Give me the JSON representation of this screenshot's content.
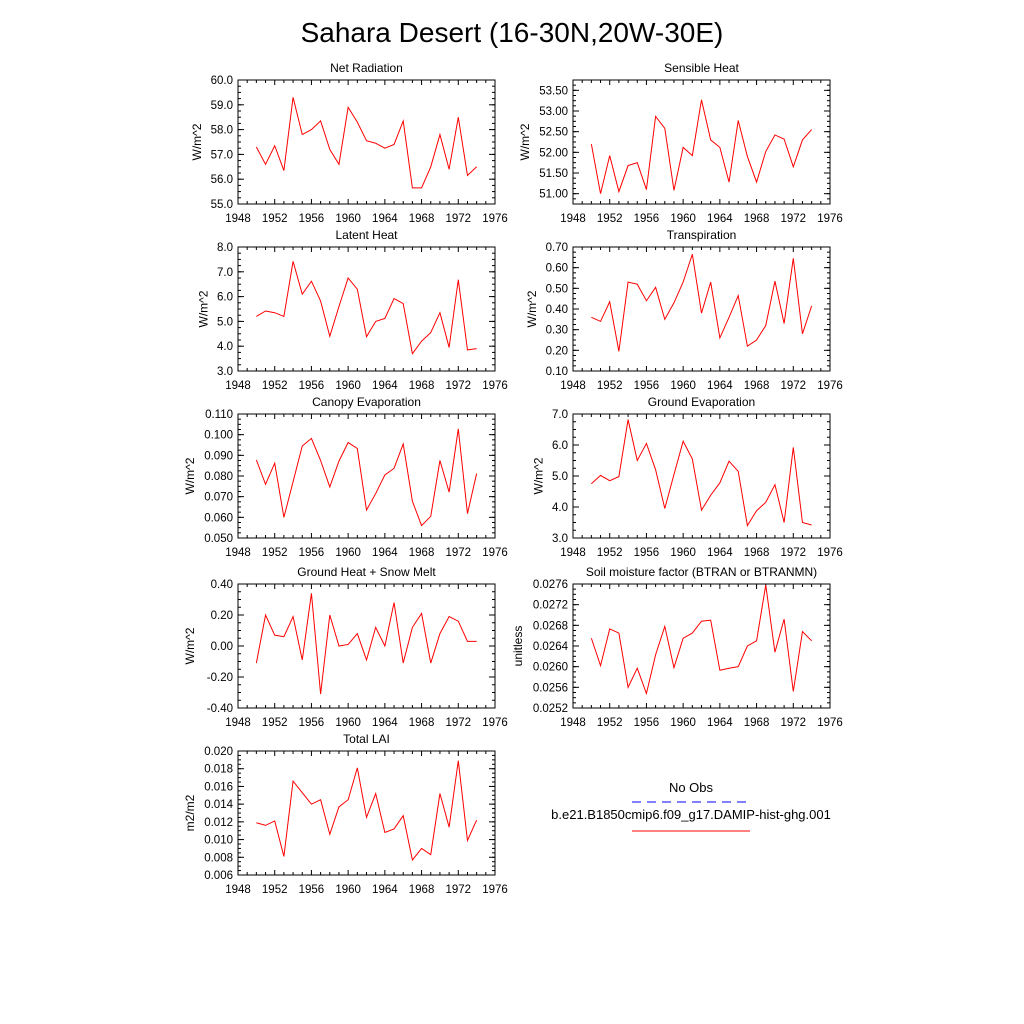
{
  "figure": {
    "title": "Sahara Desert (16-30N,20W-30E)"
  },
  "colors": {
    "model_line": "#ff0000",
    "obs_line": "#0000ff"
  },
  "legend": {
    "obs_label": "No Obs",
    "model_label": "b.e21.B1850cmip6.f09_g17.DAMIP-hist-ghg.001"
  },
  "chart_data": [
    {
      "type": "line",
      "title": "Net Radiation",
      "xlabel": "",
      "ylabel": "W/m^2",
      "xlim": [
        1948,
        1976
      ],
      "ylim": [
        55.0,
        60.0
      ],
      "xticks": [
        1948,
        1952,
        1956,
        1960,
        1964,
        1968,
        1972,
        1976
      ],
      "yticks": [
        55.0,
        56.0,
        57.0,
        58.0,
        59.0,
        60.0
      ],
      "ytick_labels": [
        "55.0",
        "56.0",
        "57.0",
        "58.0",
        "59.0",
        "60.0"
      ],
      "x": [
        1950,
        1951,
        1952,
        1953,
        1954,
        1955,
        1956,
        1957,
        1958,
        1959,
        1960,
        1961,
        1962,
        1963,
        1964,
        1965,
        1966,
        1967,
        1968,
        1969,
        1970,
        1971,
        1972,
        1973,
        1974
      ],
      "series": [
        {
          "values": [
            57.3,
            56.6,
            57.35,
            56.35,
            59.3,
            57.8,
            58.0,
            58.35,
            57.2,
            56.6,
            58.9,
            58.3,
            57.55,
            57.45,
            57.25,
            57.4,
            58.35,
            55.65,
            55.65,
            56.5,
            57.8,
            56.4,
            58.5,
            56.15,
            56.5
          ]
        }
      ]
    },
    {
      "type": "line",
      "title": "Sensible Heat",
      "xlabel": "",
      "ylabel": "W/m^2",
      "xlim": [
        1948,
        1976
      ],
      "ylim": [
        50.75,
        53.75
      ],
      "xticks": [
        1948,
        1952,
        1956,
        1960,
        1964,
        1968,
        1972,
        1976
      ],
      "yticks": [
        51.0,
        51.5,
        52.0,
        52.5,
        53.0,
        53.5
      ],
      "ytick_labels": [
        "51.00",
        "51.50",
        "52.00",
        "52.50",
        "53.00",
        "53.50"
      ],
      "x": [
        1950,
        1951,
        1952,
        1953,
        1954,
        1955,
        1956,
        1957,
        1958,
        1959,
        1960,
        1961,
        1962,
        1963,
        1964,
        1965,
        1966,
        1967,
        1968,
        1969,
        1970,
        1971,
        1972,
        1973,
        1974
      ],
      "series": [
        {
          "values": [
            52.2,
            51.0,
            51.92,
            51.05,
            51.68,
            51.75,
            51.1,
            52.87,
            52.58,
            51.08,
            52.12,
            51.92,
            53.27,
            52.3,
            52.12,
            51.28,
            52.77,
            51.9,
            51.28,
            52.02,
            52.42,
            52.32,
            51.65,
            52.3,
            52.55
          ]
        }
      ]
    },
    {
      "type": "line",
      "title": "Latent Heat",
      "xlabel": "",
      "ylabel": "W/m^2",
      "xlim": [
        1948,
        1976
      ],
      "ylim": [
        3.0,
        8.0
      ],
      "xticks": [
        1948,
        1952,
        1956,
        1960,
        1964,
        1968,
        1972,
        1976
      ],
      "yticks": [
        3.0,
        4.0,
        5.0,
        6.0,
        7.0,
        8.0
      ],
      "ytick_labels": [
        "3.0",
        "4.0",
        "5.0",
        "6.0",
        "7.0",
        "8.0"
      ],
      "x": [
        1950,
        1951,
        1952,
        1953,
        1954,
        1955,
        1956,
        1957,
        1958,
        1959,
        1960,
        1961,
        1962,
        1963,
        1964,
        1965,
        1966,
        1967,
        1968,
        1969,
        1970,
        1971,
        1972,
        1973,
        1974
      ],
      "series": [
        {
          "values": [
            5.2,
            5.42,
            5.35,
            5.2,
            7.42,
            6.1,
            6.62,
            5.82,
            4.4,
            5.6,
            6.75,
            6.3,
            4.38,
            5.0,
            5.12,
            5.92,
            5.72,
            3.7,
            4.2,
            4.55,
            5.35,
            3.95,
            6.68,
            3.85,
            3.9
          ]
        }
      ]
    },
    {
      "type": "line",
      "title": "Transpiration",
      "xlabel": "",
      "ylabel": "W/m^2",
      "xlim": [
        1948,
        1976
      ],
      "ylim": [
        0.1,
        0.7
      ],
      "xticks": [
        1948,
        1952,
        1956,
        1960,
        1964,
        1968,
        1972,
        1976
      ],
      "yticks": [
        0.1,
        0.2,
        0.3,
        0.4,
        0.5,
        0.6,
        0.7
      ],
      "ytick_labels": [
        "0.10",
        "0.20",
        "0.30",
        "0.40",
        "0.50",
        "0.60",
        "0.70"
      ],
      "x": [
        1950,
        1951,
        1952,
        1953,
        1954,
        1955,
        1956,
        1957,
        1958,
        1959,
        1960,
        1961,
        1962,
        1963,
        1964,
        1965,
        1966,
        1967,
        1968,
        1969,
        1970,
        1971,
        1972,
        1973,
        1974
      ],
      "series": [
        {
          "values": [
            0.36,
            0.34,
            0.435,
            0.195,
            0.53,
            0.52,
            0.44,
            0.505,
            0.35,
            0.43,
            0.53,
            0.665,
            0.38,
            0.53,
            0.26,
            0.36,
            0.465,
            0.22,
            0.25,
            0.32,
            0.535,
            0.33,
            0.645,
            0.28,
            0.415
          ]
        }
      ]
    },
    {
      "type": "line",
      "title": "Canopy Evaporation",
      "xlabel": "",
      "ylabel": "W/m^2",
      "xlim": [
        1948,
        1976
      ],
      "ylim": [
        0.05,
        0.11
      ],
      "xticks": [
        1948,
        1952,
        1956,
        1960,
        1964,
        1968,
        1972,
        1976
      ],
      "yticks": [
        0.05,
        0.06,
        0.07,
        0.08,
        0.09,
        0.1,
        0.11
      ],
      "ytick_labels": [
        "0.050",
        "0.060",
        "0.070",
        "0.080",
        "0.090",
        "0.100",
        "0.110"
      ],
      "x": [
        1950,
        1951,
        1952,
        1953,
        1954,
        1955,
        1956,
        1957,
        1958,
        1959,
        1960,
        1961,
        1962,
        1963,
        1964,
        1965,
        1966,
        1967,
        1968,
        1969,
        1970,
        1971,
        1972,
        1973,
        1974
      ],
      "series": [
        {
          "values": [
            0.0878,
            0.076,
            0.0862,
            0.06,
            0.0772,
            0.0945,
            0.0982,
            0.0875,
            0.0747,
            0.0872,
            0.0962,
            0.0933,
            0.0635,
            0.0715,
            0.0805,
            0.0837,
            0.0955,
            0.0678,
            0.056,
            0.0605,
            0.0875,
            0.0722,
            0.1028,
            0.0618,
            0.0812
          ]
        }
      ]
    },
    {
      "type": "line",
      "title": "Ground Evaporation",
      "xlabel": "",
      "ylabel": "W/m^2",
      "xlim": [
        1948,
        1976
      ],
      "ylim": [
        3.0,
        7.0
      ],
      "xticks": [
        1948,
        1952,
        1956,
        1960,
        1964,
        1968,
        1972,
        1976
      ],
      "yticks": [
        3.0,
        4.0,
        5.0,
        6.0,
        7.0
      ],
      "ytick_labels": [
        "3.0",
        "4.0",
        "5.0",
        "6.0",
        "7.0"
      ],
      "x": [
        1950,
        1951,
        1952,
        1953,
        1954,
        1955,
        1956,
        1957,
        1958,
        1959,
        1960,
        1961,
        1962,
        1963,
        1964,
        1965,
        1966,
        1967,
        1968,
        1969,
        1970,
        1971,
        1972,
        1973,
        1974
      ],
      "series": [
        {
          "values": [
            4.75,
            5.02,
            4.85,
            4.98,
            6.82,
            5.5,
            6.05,
            5.2,
            3.95,
            5.05,
            6.12,
            5.55,
            3.9,
            4.38,
            4.78,
            5.48,
            5.15,
            3.4,
            3.88,
            4.15,
            4.72,
            3.5,
            5.92,
            3.5,
            3.42
          ]
        }
      ]
    },
    {
      "type": "line",
      "title": "Ground Heat + Snow Melt",
      "xlabel": "",
      "ylabel": "W/m^2",
      "xlim": [
        1948,
        1976
      ],
      "ylim": [
        -0.4,
        0.4
      ],
      "xticks": [
        1948,
        1952,
        1956,
        1960,
        1964,
        1968,
        1972,
        1976
      ],
      "yticks": [
        -0.4,
        -0.2,
        0.0,
        0.2,
        0.4
      ],
      "ytick_labels": [
        "-0.40",
        "-0.20",
        "0.00",
        "0.20",
        "0.40"
      ],
      "x": [
        1950,
        1951,
        1952,
        1953,
        1954,
        1955,
        1956,
        1957,
        1958,
        1959,
        1960,
        1961,
        1962,
        1963,
        1964,
        1965,
        1966,
        1967,
        1968,
        1969,
        1970,
        1971,
        1972,
        1973,
        1974
      ],
      "series": [
        {
          "values": [
            -0.11,
            0.2,
            0.07,
            0.06,
            0.19,
            -0.09,
            0.34,
            -0.31,
            0.2,
            0.0,
            0.01,
            0.08,
            -0.09,
            0.12,
            0.0,
            0.28,
            -0.11,
            0.12,
            0.21,
            -0.11,
            0.08,
            0.19,
            0.16,
            0.03,
            0.03
          ]
        }
      ]
    },
    {
      "type": "line",
      "title": "Soil moisture factor (BTRAN or BTRANMN)",
      "xlabel": "",
      "ylabel": "unitless",
      "xlim": [
        1948,
        1976
      ],
      "ylim": [
        0.0252,
        0.0276
      ],
      "xticks": [
        1948,
        1952,
        1956,
        1960,
        1964,
        1968,
        1972,
        1976
      ],
      "yticks": [
        0.0252,
        0.0256,
        0.026,
        0.0264,
        0.0268,
        0.0272,
        0.0276
      ],
      "ytick_labels": [
        "0.0252",
        "0.0256",
        "0.0260",
        "0.0264",
        "0.0268",
        "0.0272",
        "0.0276"
      ],
      "x": [
        1950,
        1951,
        1952,
        1953,
        1954,
        1955,
        1956,
        1957,
        1958,
        1959,
        1960,
        1961,
        1962,
        1963,
        1964,
        1965,
        1966,
        1967,
        1968,
        1969,
        1970,
        1971,
        1972,
        1973,
        1974
      ],
      "series": [
        {
          "values": [
            0.02655,
            0.02602,
            0.02673,
            0.02665,
            0.0256,
            0.02597,
            0.02548,
            0.02623,
            0.02678,
            0.02598,
            0.02655,
            0.02665,
            0.02688,
            0.0269,
            0.02593,
            0.02597,
            0.026,
            0.0264,
            0.0265,
            0.02758,
            0.02628,
            0.02692,
            0.02552,
            0.02668,
            0.0265
          ]
        }
      ]
    },
    {
      "type": "line",
      "title": "Total LAI",
      "xlabel": "",
      "ylabel": "m2/m2",
      "xlim": [
        1948,
        1976
      ],
      "ylim": [
        0.006,
        0.02
      ],
      "xticks": [
        1948,
        1952,
        1956,
        1960,
        1964,
        1968,
        1972,
        1976
      ],
      "yticks": [
        0.006,
        0.008,
        0.01,
        0.012,
        0.014,
        0.016,
        0.018,
        0.02
      ],
      "ytick_labels": [
        "0.006",
        "0.008",
        "0.010",
        "0.012",
        "0.014",
        "0.016",
        "0.018",
        "0.020"
      ],
      "x": [
        1950,
        1951,
        1952,
        1953,
        1954,
        1955,
        1956,
        1957,
        1958,
        1959,
        1960,
        1961,
        1962,
        1963,
        1964,
        1965,
        1966,
        1967,
        1968,
        1969,
        1970,
        1971,
        1972,
        1973,
        1974
      ],
      "series": [
        {
          "values": [
            0.0119,
            0.0116,
            0.0121,
            0.0081,
            0.0166,
            0.0153,
            0.014,
            0.0145,
            0.0106,
            0.0137,
            0.0145,
            0.0181,
            0.0125,
            0.0152,
            0.0108,
            0.0112,
            0.0127,
            0.0077,
            0.009,
            0.0083,
            0.0152,
            0.0114,
            0.0189,
            0.0099,
            0.0122
          ]
        }
      ]
    }
  ]
}
